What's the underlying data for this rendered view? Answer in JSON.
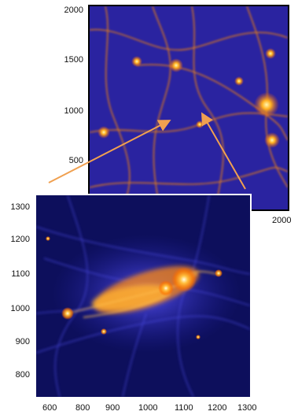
{
  "figure": {
    "top_panel": {
      "y_ticks": [
        "2000",
        "1500",
        "1000",
        "500"
      ],
      "x_ticks": [
        "2000"
      ]
    },
    "bottom_panel": {
      "y_ticks": [
        "1300",
        "1200",
        "1100",
        "1000",
        "900",
        "800"
      ],
      "x_ticks": [
        "800",
        "900",
        "1000",
        "1100",
        "1200",
        "1300"
      ],
      "x_first_tick": "600"
    },
    "colors": {
      "background_dark": "#12117a",
      "filament_blue": "#3b3bd6",
      "hot_orange": "#ff9a1a",
      "core_yellow": "#fff2a0",
      "arrow": "#f0a050"
    }
  }
}
